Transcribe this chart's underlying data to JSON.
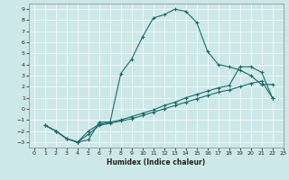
{
  "title": "",
  "xlabel": "Humidex (Indice chaleur)",
  "xlim": [
    -0.5,
    23
  ],
  "ylim": [
    -3.5,
    9.5
  ],
  "xticks": [
    0,
    1,
    2,
    3,
    4,
    5,
    6,
    7,
    8,
    9,
    10,
    11,
    12,
    13,
    14,
    15,
    16,
    17,
    18,
    19,
    20,
    21,
    22,
    23
  ],
  "yticks": [
    -3,
    -2,
    -1,
    0,
    1,
    2,
    3,
    4,
    5,
    6,
    7,
    8,
    9
  ],
  "bg_color": "#cde8e8",
  "line_color": "#1a6b6b",
  "line1_x": [
    1,
    2,
    3,
    4,
    5,
    6,
    7,
    8,
    9,
    10,
    11,
    12,
    13,
    14,
    15,
    16,
    17,
    18,
    19,
    20,
    21,
    22
  ],
  "line1_y": [
    -1.5,
    -2,
    -2.7,
    -3,
    -2.8,
    -1.2,
    -1.2,
    3.2,
    4.5,
    6.5,
    8.2,
    8.5,
    9.0,
    8.8,
    7.8,
    5.2,
    4.0,
    3.8,
    3.5,
    3.0,
    2.2,
    2.2
  ],
  "line2_x": [
    1,
    2,
    3,
    4,
    5,
    6,
    7,
    8,
    9,
    10,
    11,
    12,
    13,
    14,
    15,
    16,
    17,
    18,
    19,
    20,
    21,
    22
  ],
  "line2_y": [
    -1.5,
    -2,
    -2.7,
    -3,
    -2.3,
    -1.5,
    -1.3,
    -1.1,
    -0.9,
    -0.6,
    -0.3,
    0.0,
    0.3,
    0.6,
    0.9,
    1.2,
    1.5,
    1.7,
    2.0,
    2.3,
    2.5,
    1.0
  ],
  "line3_x": [
    1,
    2,
    3,
    4,
    5,
    6,
    7,
    8,
    9,
    10,
    11,
    12,
    13,
    14,
    15,
    16,
    17,
    18,
    19,
    20,
    21,
    22
  ],
  "line3_y": [
    -1.5,
    -2,
    -2.7,
    -3,
    -2.0,
    -1.4,
    -1.2,
    -1.0,
    -0.7,
    -0.4,
    -0.1,
    0.3,
    0.6,
    1.0,
    1.3,
    1.6,
    1.9,
    2.1,
    3.8,
    3.8,
    3.3,
    1.0
  ]
}
